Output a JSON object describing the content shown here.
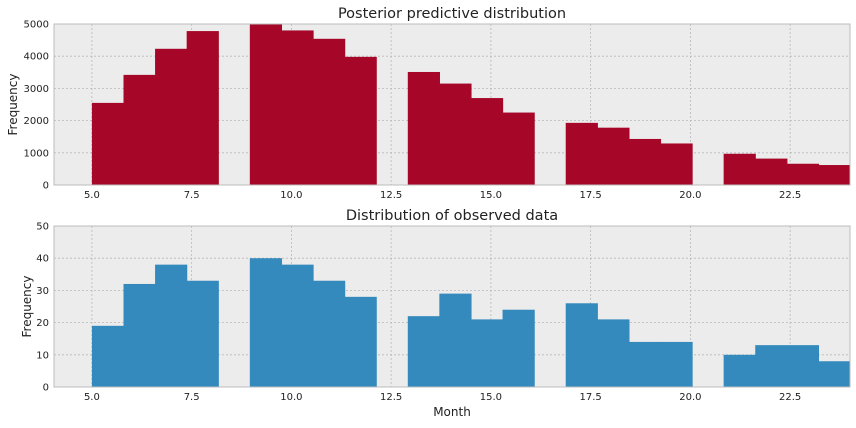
{
  "chart_data": [
    {
      "type": "bar",
      "title": "Posterior predictive distribution",
      "xlabel": "",
      "ylabel": "Frequency",
      "xlim": [
        4.05,
        24.0
      ],
      "ylim": [
        0,
        5000
      ],
      "xticks": [
        5.0,
        7.5,
        10.0,
        12.5,
        15.0,
        17.5,
        20.0,
        22.5
      ],
      "xtick_labels": [
        "5.0",
        "7.5",
        "10.0",
        "12.5",
        "15.0",
        "17.5",
        "20.0",
        "22.5"
      ],
      "yticks": [
        0,
        1000,
        2000,
        3000,
        4000,
        5000
      ],
      "ytick_labels": [
        "0",
        "1000",
        "2000",
        "3000",
        "4000",
        "5000"
      ],
      "grid": true,
      "background": "#ececec",
      "bar_color": "#a60628",
      "bin_width": 0.7917,
      "bins_start": [
        5.0,
        5.792,
        6.583,
        7.375,
        8.958,
        9.75,
        10.542,
        11.333,
        12.917,
        13.708,
        14.5,
        15.292,
        16.875,
        17.667,
        18.458,
        19.25,
        20.833,
        21.625,
        22.417,
        23.208
      ],
      "values": [
        2550,
        3420,
        4230,
        4780,
        5000,
        4800,
        4540,
        3980,
        3510,
        3150,
        2700,
        2250,
        1930,
        1780,
        1430,
        1290,
        970,
        820,
        660,
        620
      ]
    },
    {
      "type": "bar",
      "title": "Distribution of observed data",
      "xlabel": "Month",
      "ylabel": "Frequency",
      "xlim": [
        4.05,
        24.0
      ],
      "ylim": [
        0,
        50
      ],
      "xticks": [
        5.0,
        7.5,
        10.0,
        12.5,
        15.0,
        17.5,
        20.0,
        22.5
      ],
      "xtick_labels": [
        "5.0",
        "7.5",
        "10.0",
        "12.5",
        "15.0",
        "17.5",
        "20.0",
        "22.5"
      ],
      "yticks": [
        0,
        10,
        20,
        30,
        40,
        50
      ],
      "ytick_labels": [
        "0",
        "10",
        "20",
        "30",
        "40",
        "50"
      ],
      "grid": true,
      "background": "#ececec",
      "bar_color": "#348abd",
      "bin_width": 0.7917,
      "bins_start": [
        5.0,
        5.792,
        6.583,
        7.375,
        8.958,
        9.75,
        10.542,
        11.333,
        12.917,
        13.708,
        14.5,
        15.292,
        16.875,
        17.667,
        18.458,
        19.25,
        20.833,
        21.625,
        22.417,
        23.208
      ],
      "values": [
        19,
        32,
        38,
        33,
        40,
        38,
        33,
        28,
        22,
        29,
        21,
        24,
        26,
        21,
        14,
        14,
        10,
        13,
        13,
        8
      ]
    }
  ]
}
